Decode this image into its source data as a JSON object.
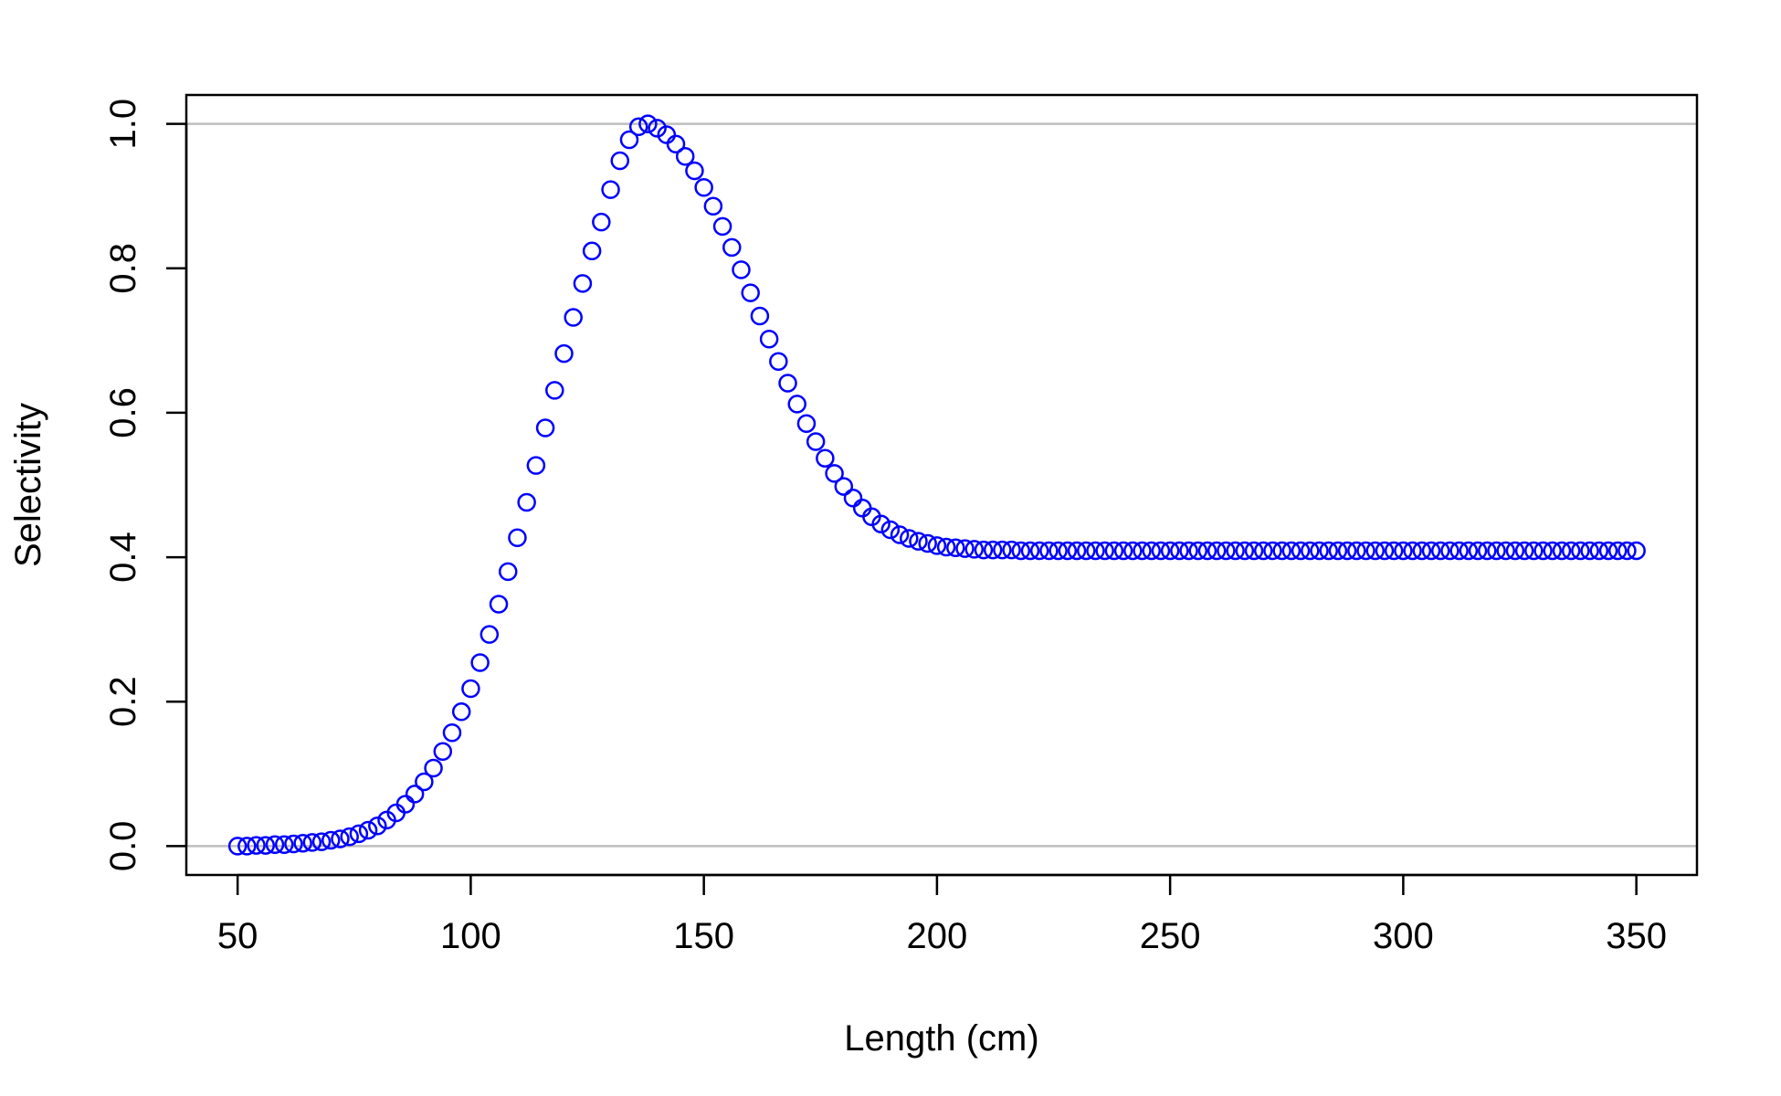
{
  "chart_data": {
    "type": "scatter",
    "title": "",
    "xlabel": "Length (cm)",
    "ylabel": "Selectivity",
    "xlim": [
      39,
      363
    ],
    "ylim": [
      -0.04,
      1.04
    ],
    "x_ticks": [
      50,
      100,
      150,
      200,
      250,
      300,
      350
    ],
    "y_ticks": [
      0.0,
      0.2,
      0.4,
      0.6,
      0.8,
      1.0
    ],
    "x_tick_labels": [
      "50",
      "100",
      "150",
      "200",
      "250",
      "300",
      "350"
    ],
    "y_tick_labels": [
      "0.0",
      "0.2",
      "0.4",
      "0.6",
      "0.8",
      "1.0"
    ],
    "reference_lines_y": [
      0,
      1
    ],
    "grid": false,
    "legend": "none",
    "colors": {
      "points": "#0000ff",
      "reference": "#bebebe",
      "axis": "#000000"
    },
    "series": [
      {
        "marker": "open-circle",
        "x": [
          50,
          52,
          54,
          56,
          58,
          60,
          62,
          64,
          66,
          68,
          70,
          72,
          74,
          76,
          78,
          80,
          82,
          84,
          86,
          88,
          90,
          92,
          94,
          96,
          98,
          100,
          102,
          104,
          106,
          108,
          110,
          112,
          114,
          116,
          118,
          120,
          122,
          124,
          126,
          128,
          130,
          132,
          134,
          136,
          138,
          140,
          142,
          144,
          146,
          148,
          150,
          152,
          154,
          156,
          158,
          160,
          162,
          164,
          166,
          168,
          170,
          172,
          174,
          176,
          178,
          180,
          182,
          184,
          186,
          188,
          190,
          192,
          194,
          196,
          198,
          200,
          202,
          204,
          206,
          208,
          210,
          212,
          214,
          216,
          218,
          220,
          222,
          224,
          226,
          228,
          230,
          232,
          234,
          236,
          238,
          240,
          242,
          244,
          246,
          248,
          250,
          252,
          254,
          256,
          258,
          260,
          262,
          264,
          266,
          268,
          270,
          272,
          274,
          276,
          278,
          280,
          282,
          284,
          286,
          288,
          290,
          292,
          294,
          296,
          298,
          300,
          302,
          304,
          306,
          308,
          310,
          312,
          314,
          316,
          318,
          320,
          322,
          324,
          326,
          328,
          330,
          332,
          334,
          336,
          338,
          340,
          342,
          344,
          346,
          348,
          350
        ],
        "y": [
          0.0,
          0.0,
          0.001,
          0.001,
          0.002,
          0.002,
          0.003,
          0.004,
          0.005,
          0.006,
          0.008,
          0.01,
          0.013,
          0.017,
          0.022,
          0.028,
          0.036,
          0.046,
          0.058,
          0.072,
          0.089,
          0.108,
          0.131,
          0.157,
          0.186,
          0.218,
          0.254,
          0.293,
          0.335,
          0.38,
          0.427,
          0.476,
          0.527,
          0.579,
          0.631,
          0.682,
          0.732,
          0.779,
          0.824,
          0.864,
          0.909,
          0.949,
          0.978,
          0.996,
          1.0,
          0.994,
          0.985,
          0.972,
          0.955,
          0.935,
          0.912,
          0.886,
          0.858,
          0.829,
          0.798,
          0.766,
          0.734,
          0.702,
          0.671,
          0.641,
          0.612,
          0.585,
          0.56,
          0.537,
          0.516,
          0.498,
          0.482,
          0.468,
          0.456,
          0.446,
          0.438,
          0.431,
          0.426,
          0.422,
          0.419,
          0.416,
          0.414,
          0.413,
          0.412,
          0.411,
          0.41,
          0.41,
          0.41,
          0.41,
          0.409,
          0.409,
          0.409,
          0.409,
          0.409,
          0.409,
          0.409,
          0.409,
          0.409,
          0.409,
          0.409,
          0.409,
          0.409,
          0.409,
          0.409,
          0.409,
          0.409,
          0.409,
          0.409,
          0.409,
          0.409,
          0.409,
          0.409,
          0.409,
          0.409,
          0.409,
          0.409,
          0.409,
          0.409,
          0.409,
          0.409,
          0.409,
          0.409,
          0.409,
          0.409,
          0.409,
          0.409,
          0.409,
          0.409,
          0.409,
          0.409,
          0.409,
          0.409,
          0.409,
          0.409,
          0.409,
          0.409,
          0.409,
          0.409,
          0.409,
          0.409,
          0.409,
          0.409,
          0.409,
          0.409,
          0.409,
          0.409,
          0.409,
          0.409,
          0.409,
          0.409,
          0.409,
          0.409,
          0.409,
          0.409,
          0.409,
          0.409
        ]
      }
    ]
  }
}
